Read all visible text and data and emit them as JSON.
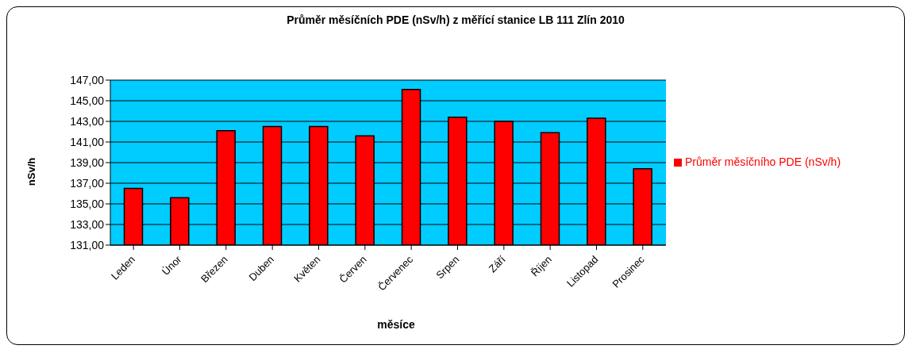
{
  "chart_data": {
    "type": "bar",
    "title": "Průměr měsíčních PDE (nSv/h) z měřící stanice LB 111 Zlín 2010",
    "xlabel": "měsíce",
    "ylabel": "nSv/h",
    "categories": [
      "Leden",
      "Únor",
      "Březen",
      "Duben",
      "Květen",
      "Červen",
      "Červenec",
      "Srpen",
      "Září",
      "Říjen",
      "Listopad",
      "Prosinec"
    ],
    "series": [
      {
        "name": "Průměr měsíčního PDE (nSv/h)",
        "color": "#ff0000",
        "values": [
          136.5,
          135.6,
          142.1,
          142.5,
          142.5,
          141.6,
          146.1,
          143.4,
          143.0,
          141.9,
          143.3,
          138.4
        ]
      }
    ],
    "ylim": [
      131,
      147
    ],
    "yticks": [
      {
        "value": 131,
        "label": "131,00"
      },
      {
        "value": 133,
        "label": "133,00"
      },
      {
        "value": 135,
        "label": "135,00"
      },
      {
        "value": 137,
        "label": "137,00"
      },
      {
        "value": 139,
        "label": "139,00"
      },
      {
        "value": 141,
        "label": "141,00"
      },
      {
        "value": 143,
        "label": "143,00"
      },
      {
        "value": 145,
        "label": "145,00"
      },
      {
        "value": 147,
        "label": "147,00"
      }
    ],
    "grid": "y",
    "legend": "right"
  }
}
